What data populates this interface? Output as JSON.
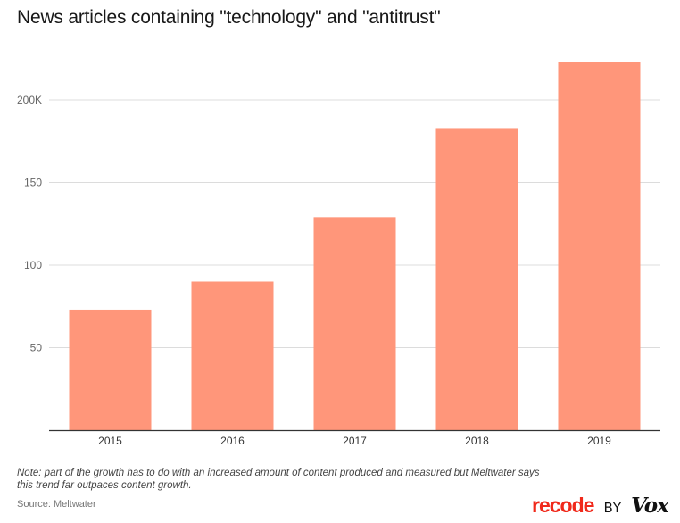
{
  "chart_data": {
    "type": "bar",
    "title": "News articles containing \"technology\" and \"antitrust\"",
    "xlabel": "",
    "ylabel": "",
    "categories": [
      "2015",
      "2016",
      "2017",
      "2018",
      "2019"
    ],
    "values": [
      73,
      90,
      129,
      183,
      223
    ],
    "value_unit": "thousands of articles",
    "ylim": [
      0,
      240
    ],
    "yticks": [
      {
        "value": 50,
        "label": "50"
      },
      {
        "value": 100,
        "label": "100"
      },
      {
        "value": 150,
        "label": "150"
      },
      {
        "value": 200,
        "label": "200K"
      }
    ],
    "grid": true,
    "legend": "none",
    "bar_color": "#ff967a"
  },
  "footer": {
    "note": "Note: part of the growth has to do with an increased amount of content produced and measured but Meltwater says this trend far outpaces content growth.",
    "source": "Source: Meltwater"
  },
  "branding": {
    "recode": "recode",
    "by": "BY",
    "vox": "Vox",
    "recode_color": "#f0291b"
  }
}
